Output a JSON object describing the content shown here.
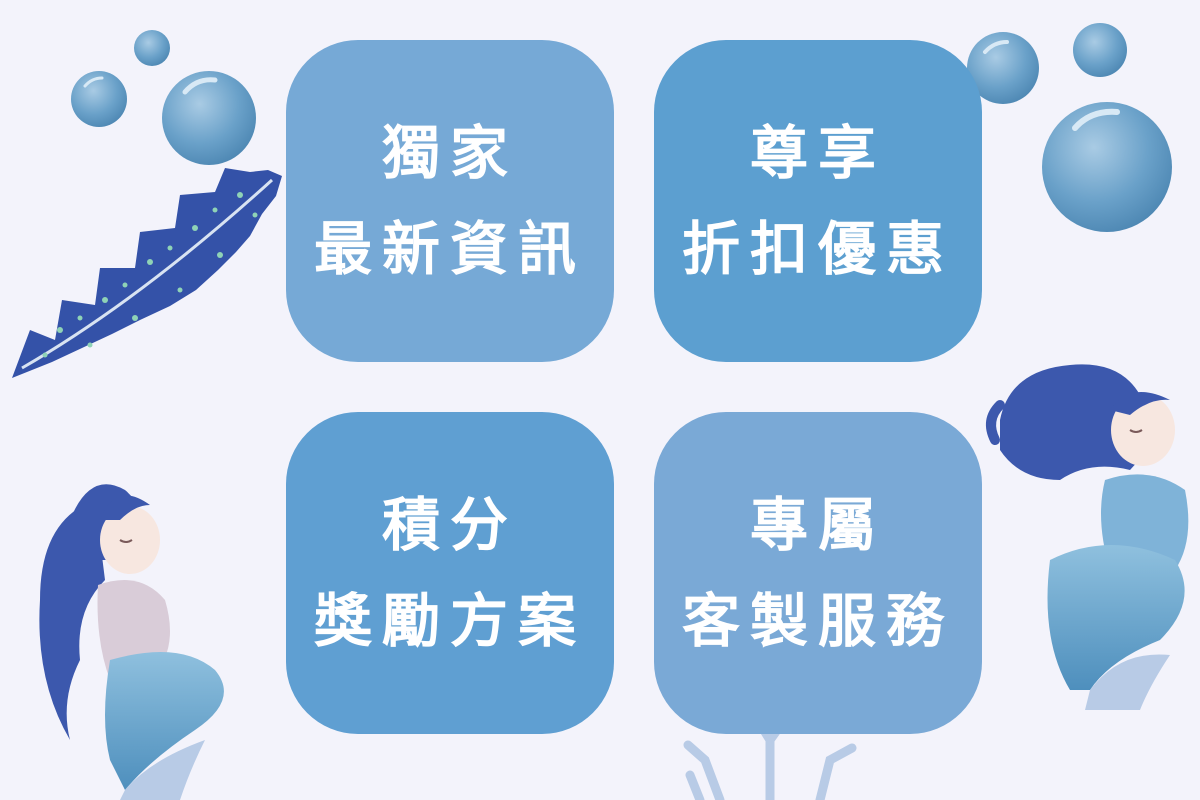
{
  "tiles": [
    {
      "line1": "獨家",
      "line2": "最新資訊"
    },
    {
      "line1": "尊享",
      "line2": "折扣優惠"
    },
    {
      "line1": "積分",
      "line2": "獎勵方案"
    },
    {
      "line1": "專屬",
      "line2": "客製服務"
    }
  ],
  "colors": {
    "background": "#f3f3fb",
    "tile_light": "#76a9d6",
    "tile_mid": "#5c9fd0",
    "tile_text": "#ffffff",
    "bubble": "#5e97c0",
    "seaweed": "#3452a8",
    "coral": "#b8cbe6",
    "mermaid_hair": "#3c58ad",
    "mermaid_tail": "#6aa6cc"
  }
}
